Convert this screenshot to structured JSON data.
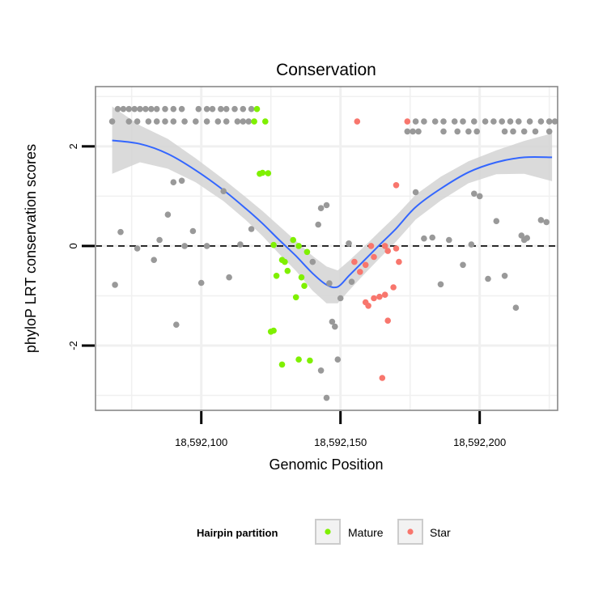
{
  "chart_data": {
    "type": "scatter",
    "title": "Conservation",
    "xlabel": "Genomic Position",
    "ylabel": "phyloP LRT conservation scores",
    "xlim": [
      18592062,
      18592228
    ],
    "ylim": [
      -3.3,
      3.2
    ],
    "x_ticks": [
      18592100,
      18592150,
      18592200
    ],
    "x_tick_labels": [
      "18,592,100",
      "18,592,150",
      "18,592,200"
    ],
    "y_ticks": [
      -2,
      0,
      2
    ],
    "y_tick_labels": [
      "-2",
      "0",
      "2"
    ],
    "reference_line": {
      "y": 0,
      "style": "dashed"
    },
    "grid": true,
    "legend": {
      "title": "Hairpin partition",
      "position": "bottom",
      "entries": [
        {
          "label": "Mature",
          "color": "#7ff000"
        },
        {
          "label": "Star",
          "color": "#f8766d"
        }
      ]
    },
    "colors": {
      "other": "#999999",
      "Mature": "#7ff000",
      "Star": "#f8766d",
      "smooth_line": "#3366ff",
      "confidence_band": "#d3d3d3",
      "grid": "#f0f0f0"
    },
    "series": [
      {
        "name": "Other",
        "points": [
          [
            18592068,
            2.5
          ],
          [
            18592070,
            2.75
          ],
          [
            18592072,
            2.75
          ],
          [
            18592074,
            2.75
          ],
          [
            18592076,
            2.75
          ],
          [
            18592078,
            2.75
          ],
          [
            18592080,
            2.75
          ],
          [
            18592082,
            2.75
          ],
          [
            18592084,
            2.75
          ],
          [
            18592087,
            2.75
          ],
          [
            18592090,
            2.75
          ],
          [
            18592093,
            2.75
          ],
          [
            18592074,
            2.5
          ],
          [
            18592077,
            2.5
          ],
          [
            18592081,
            2.5
          ],
          [
            18592084,
            2.5
          ],
          [
            18592087,
            2.5
          ],
          [
            18592090,
            2.5
          ],
          [
            18592094,
            2.5
          ],
          [
            18592098,
            2.5
          ],
          [
            18592102,
            2.5
          ],
          [
            18592106,
            2.5
          ],
          [
            18592109,
            2.5
          ],
          [
            18592113,
            2.5
          ],
          [
            18592115,
            2.5
          ],
          [
            18592117,
            2.5
          ],
          [
            18592099,
            2.75
          ],
          [
            18592102,
            2.75
          ],
          [
            18592104,
            2.75
          ],
          [
            18592107,
            2.75
          ],
          [
            18592109,
            2.75
          ],
          [
            18592112,
            2.75
          ],
          [
            18592115,
            2.75
          ],
          [
            18592118,
            2.75
          ],
          [
            18592177,
            2.5
          ],
          [
            18592180,
            2.5
          ],
          [
            18592184,
            2.5
          ],
          [
            18592187,
            2.5
          ],
          [
            18592191,
            2.5
          ],
          [
            18592194,
            2.5
          ],
          [
            18592198,
            2.5
          ],
          [
            18592202,
            2.5
          ],
          [
            18592205,
            2.5
          ],
          [
            18592208,
            2.5
          ],
          [
            18592211,
            2.5
          ],
          [
            18592214,
            2.5
          ],
          [
            18592218,
            2.5
          ],
          [
            18592222,
            2.5
          ],
          [
            18592225,
            2.5
          ],
          [
            18592227,
            2.5
          ],
          [
            18592174,
            2.3
          ],
          [
            18592176,
            2.3
          ],
          [
            18592178,
            2.3
          ],
          [
            18592187,
            2.3
          ],
          [
            18592192,
            2.3
          ],
          [
            18592196,
            2.3
          ],
          [
            18592199,
            2.3
          ],
          [
            18592209,
            2.3
          ],
          [
            18592212,
            2.3
          ],
          [
            18592216,
            2.3
          ],
          [
            18592220,
            2.3
          ],
          [
            18592225,
            2.3
          ],
          [
            18592069,
            -0.78
          ],
          [
            18592071,
            0.28
          ],
          [
            18592077,
            -0.05
          ],
          [
            18592083,
            -0.28
          ],
          [
            18592085,
            0.12
          ],
          [
            18592088,
            0.63
          ],
          [
            18592090,
            1.28
          ],
          [
            18592091,
            -1.58
          ],
          [
            18592093,
            1.31
          ],
          [
            18592094,
            0.0
          ],
          [
            18592097,
            0.3
          ],
          [
            18592100,
            -0.74
          ],
          [
            18592102,
            0.0
          ],
          [
            18592108,
            1.1
          ],
          [
            18592110,
            -0.63
          ],
          [
            18592114,
            0.03
          ],
          [
            18592118,
            0.34
          ],
          [
            18592140,
            -0.32
          ],
          [
            18592142,
            0.43
          ],
          [
            18592143,
            0.76
          ],
          [
            18592145,
            0.82
          ],
          [
            18592146,
            -0.75
          ],
          [
            18592147,
            -1.52
          ],
          [
            18592148,
            -1.62
          ],
          [
            18592149,
            -2.28
          ],
          [
            18592150,
            -1.05
          ],
          [
            18592153,
            0.05
          ],
          [
            18592154,
            -0.72
          ],
          [
            18592143,
            -2.5
          ],
          [
            18592145,
            -3.05
          ],
          [
            18592177,
            1.08
          ],
          [
            18592180,
            0.15
          ],
          [
            18592183,
            0.17
          ],
          [
            18592186,
            -0.77
          ],
          [
            18592189,
            0.12
          ],
          [
            18592194,
            -0.38
          ],
          [
            18592197,
            0.03
          ],
          [
            18592198,
            1.05
          ],
          [
            18592200,
            1.0
          ],
          [
            18592203,
            -0.66
          ],
          [
            18592206,
            0.5
          ],
          [
            18592209,
            -0.6
          ],
          [
            18592213,
            -1.24
          ],
          [
            18592215,
            0.21
          ],
          [
            18592216,
            0.12
          ],
          [
            18592217,
            0.16
          ],
          [
            18592222,
            0.52
          ],
          [
            18592224,
            0.48
          ]
        ]
      },
      {
        "name": "Mature",
        "points": [
          [
            18592120,
            2.75
          ],
          [
            18592119,
            2.5
          ],
          [
            18592123,
            2.5
          ],
          [
            18592121,
            1.45
          ],
          [
            18592122,
            1.47
          ],
          [
            18592124,
            1.46
          ],
          [
            18592126,
            0.02
          ],
          [
            18592127,
            -0.6
          ],
          [
            18592129,
            -0.28
          ],
          [
            18592130,
            -0.32
          ],
          [
            18592131,
            -0.5
          ],
          [
            18592133,
            0.12
          ],
          [
            18592134,
            -1.03
          ],
          [
            18592135,
            -0.0
          ],
          [
            18592136,
            -0.63
          ],
          [
            18592137,
            -0.8
          ],
          [
            18592138,
            -0.12
          ],
          [
            18592125,
            -1.72
          ],
          [
            18592126,
            -1.7
          ],
          [
            18592129,
            -2.38
          ],
          [
            18592135,
            -2.28
          ],
          [
            18592139,
            -2.3
          ]
        ]
      },
      {
        "name": "Star",
        "points": [
          [
            18592156,
            2.5
          ],
          [
            18592174,
            2.5
          ],
          [
            18592170,
            1.22
          ],
          [
            18592155,
            -0.32
          ],
          [
            18592157,
            -0.52
          ],
          [
            18592159,
            -0.38
          ],
          [
            18592161,
            -0.0
          ],
          [
            18592162,
            -0.22
          ],
          [
            18592166,
            0.0
          ],
          [
            18592167,
            -0.1
          ],
          [
            18592170,
            -0.05
          ],
          [
            18592171,
            -0.32
          ],
          [
            18592159,
            -1.13
          ],
          [
            18592160,
            -1.2
          ],
          [
            18592162,
            -1.05
          ],
          [
            18592164,
            -1.02
          ],
          [
            18592166,
            -0.98
          ],
          [
            18592167,
            -1.5
          ],
          [
            18592169,
            -0.83
          ],
          [
            18592165,
            -2.65
          ]
        ]
      }
    ],
    "smooth_curve": [
      [
        18592068,
        2.12
      ],
      [
        18592078,
        2.05
      ],
      [
        18592088,
        1.85
      ],
      [
        18592098,
        1.52
      ],
      [
        18592108,
        1.12
      ],
      [
        18592116,
        0.75
      ],
      [
        18592122,
        0.45
      ],
      [
        18592128,
        0.12
      ],
      [
        18592134,
        -0.2
      ],
      [
        18592140,
        -0.55
      ],
      [
        18592145,
        -0.78
      ],
      [
        18592149,
        -0.82
      ],
      [
        18592153,
        -0.6
      ],
      [
        18592158,
        -0.32
      ],
      [
        18592164,
        0.02
      ],
      [
        18592170,
        0.35
      ],
      [
        18592177,
        0.78
      ],
      [
        18592186,
        1.15
      ],
      [
        18592196,
        1.48
      ],
      [
        18592206,
        1.68
      ],
      [
        18592216,
        1.78
      ],
      [
        18592226,
        1.78
      ]
    ],
    "confidence_band": [
      [
        18592068,
        1.45,
        2.8
      ],
      [
        18592078,
        1.68,
        2.42
      ],
      [
        18592088,
        1.55,
        2.15
      ],
      [
        18592098,
        1.28,
        1.76
      ],
      [
        18592108,
        0.9,
        1.34
      ],
      [
        18592116,
        0.52,
        0.98
      ],
      [
        18592122,
        0.2,
        0.7
      ],
      [
        18592128,
        -0.16,
        0.4
      ],
      [
        18592134,
        -0.5,
        0.1
      ],
      [
        18592140,
        -0.9,
        -0.2
      ],
      [
        18592145,
        -1.15,
        -0.41
      ],
      [
        18592149,
        -1.15,
        -0.49
      ],
      [
        18592153,
        -0.9,
        -0.3
      ],
      [
        18592158,
        -0.6,
        -0.04
      ],
      [
        18592164,
        -0.25,
        0.29
      ],
      [
        18592170,
        0.09,
        0.61
      ],
      [
        18592177,
        0.53,
        1.03
      ],
      [
        18592186,
        0.91,
        1.39
      ],
      [
        18592196,
        1.26,
        1.7
      ],
      [
        18592206,
        1.44,
        1.92
      ],
      [
        18592216,
        1.45,
        2.11
      ],
      [
        18592226,
        1.3,
        2.26
      ]
    ]
  }
}
